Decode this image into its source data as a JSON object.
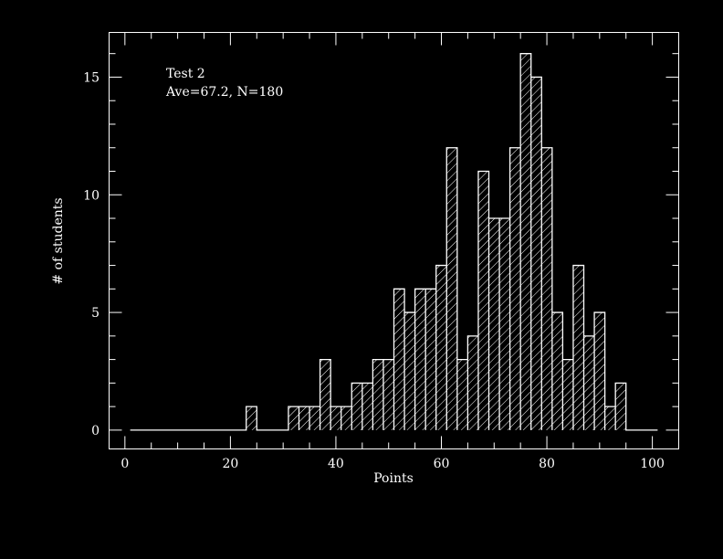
{
  "colors": {
    "background": "#000000",
    "foreground": "#ffffff"
  },
  "chart_data": {
    "type": "bar",
    "subtype": "histogram-hatched",
    "annotation": [
      "Test 2",
      "Ave=67.2, N=180"
    ],
    "xlabel": "Points",
    "ylabel": "# of students",
    "xlim": [
      -3,
      105
    ],
    "ylim": [
      -0.8,
      16.9
    ],
    "xticks": [
      0,
      20,
      40,
      60,
      80,
      100
    ],
    "yticks": [
      0,
      5,
      10,
      15
    ],
    "bin_width": 2,
    "bin_starts": [
      1,
      3,
      5,
      7,
      9,
      11,
      13,
      15,
      17,
      19,
      21,
      23,
      25,
      27,
      29,
      31,
      33,
      35,
      37,
      39,
      41,
      43,
      45,
      47,
      49,
      51,
      53,
      55,
      57,
      59,
      61,
      63,
      65,
      67,
      69,
      71,
      73,
      75,
      77,
      79,
      81,
      83,
      85,
      87,
      89,
      91,
      93,
      95,
      97,
      99
    ],
    "values": [
      0,
      0,
      0,
      0,
      0,
      0,
      0,
      0,
      0,
      0,
      0,
      1,
      0,
      0,
      0,
      1,
      1,
      1,
      3,
      1,
      1,
      2,
      2,
      3,
      3,
      6,
      5,
      6,
      6,
      7,
      12,
      3,
      4,
      11,
      9,
      9,
      12,
      16,
      15,
      12,
      5,
      3,
      7,
      4,
      5,
      1,
      2,
      0,
      0,
      0
    ],
    "grid": false,
    "legend": "none"
  }
}
